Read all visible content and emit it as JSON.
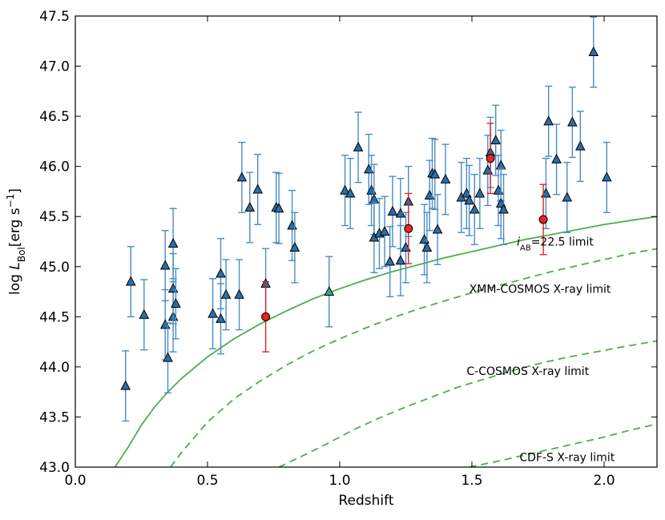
{
  "chart_data": {
    "type": "scatter",
    "xlabel": "Redshift",
    "ylabel": "log L_Bol [erg s^-1]",
    "ylabel_parts": {
      "main": "log ",
      "sym": "L",
      "sub": "Bol",
      "unit": "[erg s",
      "exp": "−1",
      "close": "]"
    },
    "xlim": [
      0.0,
      2.2
    ],
    "ylim": [
      43.0,
      47.5
    ],
    "xticks": [
      "0.0",
      "0.5",
      "1.0",
      "1.5",
      "2.0"
    ],
    "yticks": [
      "43.0",
      "43.5",
      "44.0",
      "44.5",
      "45.0",
      "45.5",
      "46.0",
      "46.5",
      "47.0",
      "47.5"
    ],
    "colors": {
      "triangle": "#2e6da4",
      "triangle_green": "#3aa487",
      "errorbar_blue": "#4a8bc4",
      "circle": "#e8251f",
      "errorbar_red": "#d62728",
      "curve": "#4daf4a"
    },
    "series": [
      {
        "name": "Triangles",
        "marker": "triangle",
        "points": [
          [
            0.19,
            43.81,
            0.35
          ],
          [
            0.21,
            44.85,
            0.35
          ],
          [
            0.26,
            44.52,
            0.35
          ],
          [
            0.34,
            45.01,
            0.35
          ],
          [
            0.34,
            44.42,
            0.35
          ],
          [
            0.35,
            44.09,
            0.35
          ],
          [
            0.37,
            45.23,
            0.35
          ],
          [
            0.37,
            44.5,
            0.35
          ],
          [
            0.37,
            44.78,
            0.35
          ],
          [
            0.38,
            44.63,
            0.35
          ],
          [
            0.52,
            44.53,
            0.35
          ],
          [
            0.55,
            44.93,
            0.35
          ],
          [
            0.55,
            44.48,
            0.35
          ],
          [
            0.57,
            44.72,
            0.35
          ],
          [
            0.62,
            44.72,
            0.35
          ],
          [
            0.63,
            45.89,
            0.35
          ],
          [
            0.66,
            45.59,
            0.35
          ],
          [
            0.69,
            45.77,
            0.35
          ],
          [
            0.72,
            44.83,
            0.35
          ],
          [
            0.76,
            45.59,
            0.35
          ],
          [
            0.77,
            45.58,
            0.35
          ],
          [
            0.82,
            45.41,
            0.35
          ],
          [
            0.83,
            45.19,
            0.35
          ],
          [
            1.02,
            45.76,
            0.35
          ],
          [
            1.04,
            45.73,
            0.35
          ],
          [
            1.07,
            46.19,
            0.35
          ],
          [
            1.11,
            45.97,
            0.35
          ],
          [
            1.12,
            45.76,
            0.35
          ],
          [
            1.13,
            45.67,
            0.35
          ],
          [
            1.13,
            45.29,
            0.35
          ],
          [
            1.15,
            45.33,
            0.35
          ],
          [
            1.17,
            45.35,
            0.35
          ],
          [
            1.19,
            45.05,
            0.35
          ],
          [
            1.2,
            45.55,
            0.35
          ],
          [
            1.23,
            45.53,
            0.35
          ],
          [
            1.23,
            45.06,
            0.35
          ],
          [
            1.25,
            45.19,
            0.35
          ],
          [
            1.26,
            45.65,
            0.35
          ],
          [
            1.32,
            45.27,
            0.35
          ],
          [
            1.33,
            45.19,
            0.35
          ],
          [
            1.34,
            45.71,
            0.35
          ],
          [
            1.35,
            45.93,
            0.35
          ],
          [
            1.36,
            45.92,
            0.35
          ],
          [
            1.37,
            45.37,
            0.35
          ],
          [
            1.4,
            45.87,
            0.35
          ],
          [
            1.46,
            45.69,
            0.35
          ],
          [
            1.48,
            45.73,
            0.35
          ],
          [
            1.49,
            45.66,
            0.35
          ],
          [
            1.51,
            45.57,
            0.35
          ],
          [
            1.53,
            45.73,
            0.35
          ],
          [
            1.56,
            45.96,
            0.35
          ],
          [
            1.57,
            46.14,
            0.35
          ],
          [
            1.59,
            46.26,
            0.35
          ],
          [
            1.6,
            45.76,
            0.35
          ],
          [
            1.61,
            46.01,
            0.35
          ],
          [
            1.61,
            45.63,
            0.35
          ],
          [
            1.62,
            45.57,
            0.35
          ],
          [
            1.78,
            45.73,
            0.35
          ],
          [
            1.79,
            46.45,
            0.35
          ],
          [
            1.82,
            46.07,
            0.35
          ],
          [
            1.86,
            45.69,
            0.35
          ],
          [
            1.88,
            46.44,
            0.35
          ],
          [
            1.91,
            46.2,
            0.35
          ],
          [
            1.96,
            47.14,
            0.35
          ],
          [
            2.01,
            45.89,
            0.35
          ]
        ]
      },
      {
        "name": "Green triangle",
        "marker": "triangle_green",
        "points": [
          [
            0.96,
            44.75,
            0.35
          ]
        ]
      },
      {
        "name": "Circles",
        "marker": "circle",
        "points": [
          [
            0.72,
            44.5,
            0.35
          ],
          [
            1.26,
            45.38,
            0.35
          ],
          [
            1.57,
            46.08,
            0.35
          ],
          [
            1.77,
            45.47,
            0.35
          ]
        ]
      }
    ],
    "curves": [
      {
        "name": "iAB=22.5 limit",
        "style": "solid",
        "points": [
          [
            0.15,
            43.0
          ],
          [
            0.2,
            43.2
          ],
          [
            0.25,
            43.42
          ],
          [
            0.3,
            43.6
          ],
          [
            0.35,
            43.75
          ],
          [
            0.4,
            43.88
          ],
          [
            0.5,
            44.1
          ],
          [
            0.6,
            44.28
          ],
          [
            0.7,
            44.43
          ],
          [
            0.8,
            44.56
          ],
          [
            0.9,
            44.68
          ],
          [
            1.0,
            44.78
          ],
          [
            1.1,
            44.87
          ],
          [
            1.2,
            44.95
          ],
          [
            1.3,
            45.02
          ],
          [
            1.4,
            45.09
          ],
          [
            1.5,
            45.15
          ],
          [
            1.6,
            45.21
          ],
          [
            1.7,
            45.27
          ],
          [
            1.8,
            45.32
          ],
          [
            1.9,
            45.37
          ],
          [
            2.0,
            45.42
          ],
          [
            2.1,
            45.46
          ],
          [
            2.2,
            45.5
          ]
        ]
      },
      {
        "name": "XMM-COSMOS X-ray limit",
        "style": "dashed",
        "points": [
          [
            0.36,
            43.0
          ],
          [
            0.4,
            43.14
          ],
          [
            0.5,
            43.45
          ],
          [
            0.6,
            43.68
          ],
          [
            0.7,
            43.86
          ],
          [
            0.8,
            44.02
          ],
          [
            0.9,
            44.16
          ],
          [
            1.0,
            44.28
          ],
          [
            1.1,
            44.39
          ],
          [
            1.2,
            44.49
          ],
          [
            1.3,
            44.58
          ],
          [
            1.4,
            44.66
          ],
          [
            1.5,
            44.74
          ],
          [
            1.6,
            44.81
          ],
          [
            1.7,
            44.88
          ],
          [
            1.8,
            44.95
          ],
          [
            1.9,
            45.01
          ],
          [
            2.0,
            45.07
          ],
          [
            2.1,
            45.13
          ],
          [
            2.2,
            45.18
          ]
        ]
      },
      {
        "name": "C-COSMOS X-ray limit",
        "style": "dashed",
        "points": [
          [
            0.77,
            43.0
          ],
          [
            0.85,
            43.1
          ],
          [
            0.95,
            43.23
          ],
          [
            1.05,
            43.37
          ],
          [
            1.15,
            43.49
          ],
          [
            1.25,
            43.6
          ],
          [
            1.35,
            43.7
          ],
          [
            1.45,
            43.8
          ],
          [
            1.55,
            43.88
          ],
          [
            1.65,
            43.96
          ],
          [
            1.75,
            44.03
          ],
          [
            1.85,
            44.09
          ],
          [
            1.95,
            44.14
          ],
          [
            2.05,
            44.19
          ],
          [
            2.2,
            44.26
          ]
        ]
      },
      {
        "name": "CDF-S X-ray limit",
        "style": "dashed",
        "points": [
          [
            1.49,
            43.0
          ],
          [
            1.6,
            43.06
          ],
          [
            1.7,
            43.12
          ],
          [
            1.8,
            43.18
          ],
          [
            1.9,
            43.24
          ],
          [
            2.0,
            43.3
          ],
          [
            2.1,
            43.37
          ],
          [
            2.2,
            43.43
          ]
        ]
      }
    ],
    "annotations": [
      {
        "id": "iab",
        "text": "i",
        "sub": "AB",
        "rest": "=22.5 limit",
        "x": 1.67,
        "y": 45.21
      },
      {
        "id": "xmm",
        "text": "XMM-COSMOS X-ray limit",
        "x": 1.49,
        "y": 44.74
      },
      {
        "id": "ccosmos",
        "text": "C-COSMOS X-ray limit",
        "x": 1.48,
        "y": 43.92
      },
      {
        "id": "cdfs",
        "text": "CDF-S X-ray limit",
        "x": 1.68,
        "y": 43.06
      }
    ]
  }
}
